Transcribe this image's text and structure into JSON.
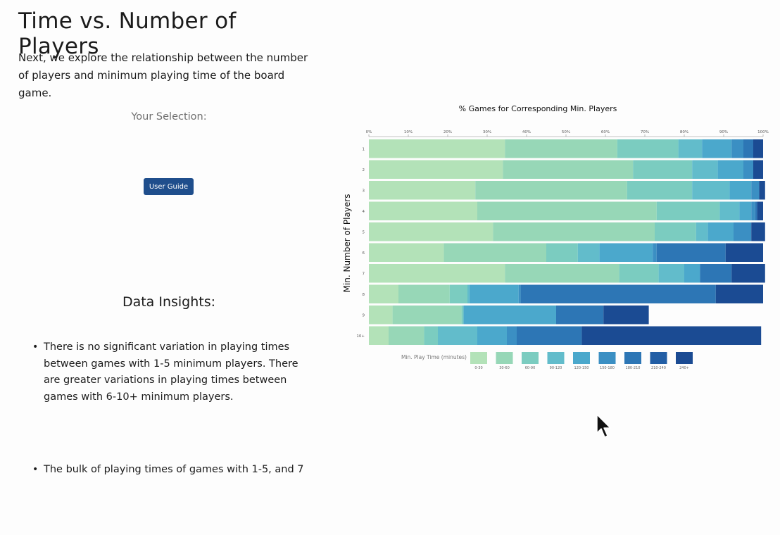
{
  "page": {
    "title": "Time vs. Number of Players",
    "intro": "Next, we explore the relationship between the number of players and minimum playing time of the board game.",
    "selection_label": "Your Selection:",
    "user_guide_label": "User Guide",
    "insights_heading": "Data Insights:",
    "insights": [
      "There is no significant variation in playing times between games with 1-5 minimum players. There are greater variations in playing times between games with 6-10+ minimum players.",
      "The bulk of playing times of games with 1-5, and 7"
    ]
  },
  "chart_data": {
    "type": "bar",
    "orientation": "horizontal",
    "stacked": true,
    "title": "% Games for Corresponding Min. Players",
    "ylabel": "Min. Number of Players",
    "xlim": [
      0,
      100
    ],
    "x_ticks": [
      "0%",
      "10%",
      "20%",
      "30%",
      "40%",
      "50%",
      "60%",
      "70%",
      "80%",
      "90%",
      "100%"
    ],
    "categories": [
      "1",
      "2",
      "3",
      "4",
      "5",
      "6",
      "7",
      "8",
      "9",
      "10+"
    ],
    "legend_title": "Min. Play Time (minutes)",
    "legend_position": "bottom",
    "series": [
      {
        "name": "0-30",
        "color": "#b3e2b8",
        "values": [
          34.5,
          34.0,
          27.0,
          27.5,
          31.5,
          19.0,
          34.5,
          7.5,
          6.0,
          5.0
        ]
      },
      {
        "name": "30-60",
        "color": "#97d7b7",
        "values": [
          28.5,
          33.0,
          38.5,
          45.5,
          41.0,
          26.0,
          29.0,
          13.0,
          17.5,
          9.0
        ]
      },
      {
        "name": "60-90",
        "color": "#7bccc0",
        "values": [
          15.5,
          15.0,
          16.5,
          16.0,
          10.5,
          8.0,
          10.0,
          4.5,
          0.5,
          3.5
        ]
      },
      {
        "name": "90-120",
        "color": "#62bccb",
        "values": [
          6.0,
          6.5,
          9.5,
          5.0,
          3.0,
          5.5,
          6.5,
          0.5,
          0.0,
          10.0
        ]
      },
      {
        "name": "120-150",
        "color": "#4ba8cc",
        "values": [
          7.5,
          6.5,
          5.5,
          3.0,
          6.5,
          13.5,
          4.0,
          12.5,
          23.5,
          7.5
        ]
      },
      {
        "name": "150-180",
        "color": "#3b8fc3",
        "values": [
          3.0,
          2.5,
          2.0,
          1.0,
          4.5,
          1.0,
          0.0,
          0.5,
          0.0,
          2.5
        ]
      },
      {
        "name": "180-210",
        "color": "#2d76b5",
        "values": [
          2.5,
          0.0,
          0.0,
          0.5,
          0.0,
          17.5,
          8.0,
          49.5,
          12.0,
          16.5
        ]
      },
      {
        "name": "210-240",
        "color": "#225ea5",
        "values": [
          0.0,
          0.0,
          0.0,
          0.0,
          0.0,
          0.0,
          0.0,
          0.0,
          0.0,
          0.0
        ]
      },
      {
        "name": "240+",
        "color": "#1b4b93",
        "values": [
          2.5,
          2.5,
          1.5,
          1.5,
          3.5,
          9.5,
          8.5,
          12.0,
          11.5,
          45.5
        ]
      }
    ],
    "grid": false
  }
}
